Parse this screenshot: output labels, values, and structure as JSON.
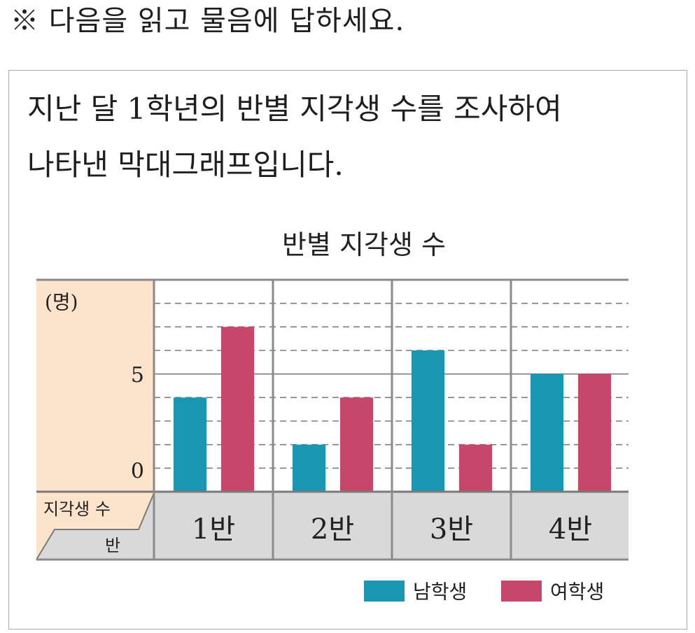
{
  "instruction": "※ 다음을 읽고 물음에 답하세요.",
  "passage": {
    "lines": [
      "지난 달 1학년의 반별 지각생 수를 조사하여",
      "나타낸 막대그래프입니다."
    ]
  },
  "chart_data": {
    "type": "bar",
    "title": "반별 지각생 수",
    "unit_label": "(명)",
    "corner_header": {
      "value_label": "지각생 수",
      "category_label": "반"
    },
    "categories": [
      "1반",
      "2반",
      "3반",
      "4반"
    ],
    "series": [
      {
        "name": "남학생",
        "values": [
          4,
          2,
          6,
          5
        ],
        "color": "#1A96B3"
      },
      {
        "name": "여학생",
        "values": [
          7,
          4,
          2,
          5
        ],
        "color": "#C7476B"
      }
    ],
    "ylim": [
      0,
      9
    ],
    "yticks": [
      0,
      5
    ],
    "grid": true,
    "legend": "bottom-right"
  }
}
